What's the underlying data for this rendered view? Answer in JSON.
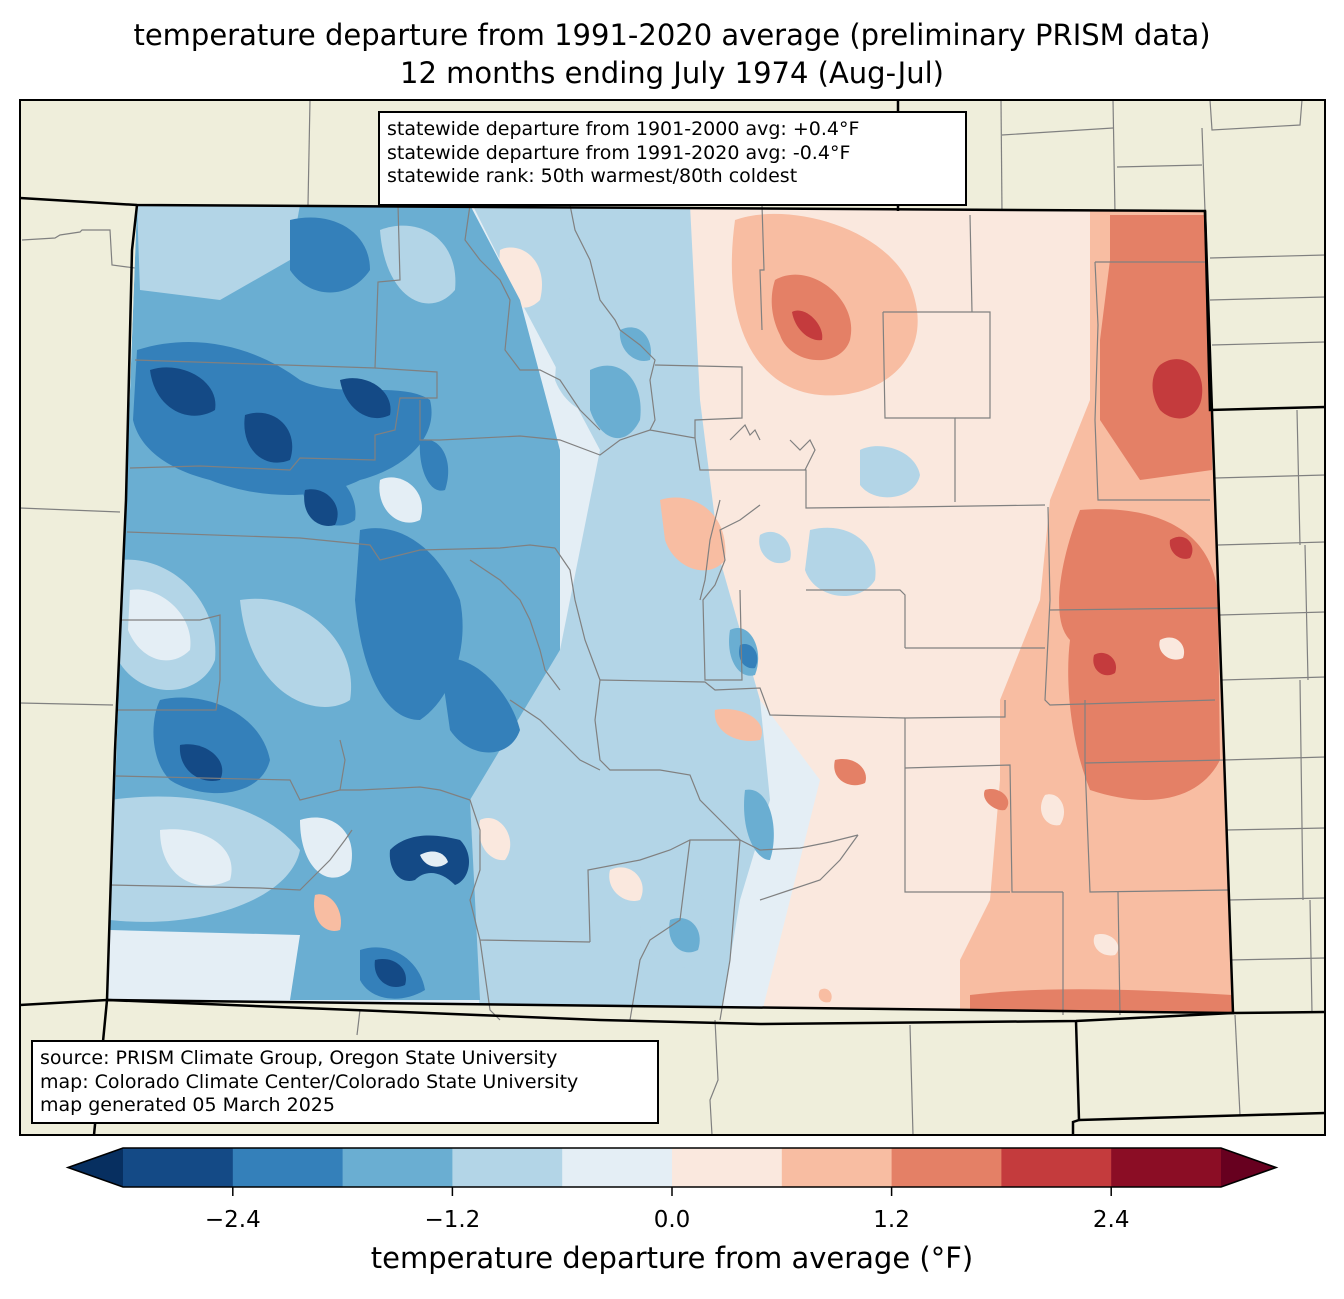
{
  "title": {
    "line1": "temperature departure from 1991-2020 average (preliminary PRISM data)",
    "line2": "12 months ending July 1974 (Aug-Jul)"
  },
  "stats_box": {
    "line1": "statewide departure from 1901-2000 avg: +0.4°F",
    "line2": "statewide departure from 1991-2020 avg: -0.4°F",
    "line3": "statewide rank: 50th warmest/80th coldest"
  },
  "credits_box": {
    "line1": "source: PRISM Climate Group, Oregon State University",
    "line2": "map: Colorado Climate Center/Colorado State University",
    "line3": "map generated 05 March 2025"
  },
  "colors": {
    "land": "#efeedb",
    "state_border": "#000000",
    "county_border": "#808080"
  },
  "colorbar": {
    "label": "temperature departure from average (°F)",
    "bins": [
      -3.0,
      -2.4,
      -1.8,
      -1.2,
      -0.6,
      0.0,
      0.6,
      1.2,
      1.8,
      2.4,
      3.0
    ],
    "bin_colors": [
      "#144a86",
      "#3480ba",
      "#6aaed2",
      "#b3d5e7",
      "#e4eef5",
      "#fae8de",
      "#f8bda2",
      "#e48066",
      "#c43b3d",
      "#8b0d25"
    ],
    "under_color": "#072f60",
    "over_color": "#67001f",
    "ticks": [
      {
        "value": -2.4,
        "label": "−2.4"
      },
      {
        "value": -1.2,
        "label": "−1.2"
      },
      {
        "value": 0.0,
        "label": "0.0"
      },
      {
        "value": 1.2,
        "label": "1.2"
      },
      {
        "value": 2.4,
        "label": "2.4"
      }
    ]
  }
}
